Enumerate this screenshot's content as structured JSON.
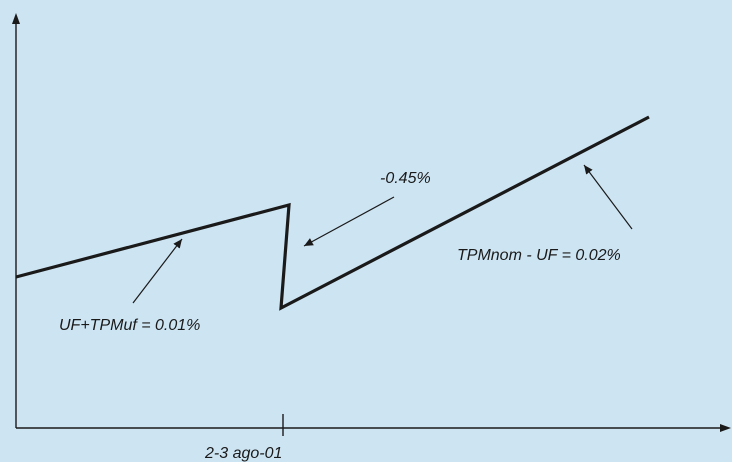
{
  "colors": {
    "background": "#cde4f3",
    "ink": "#1a1a1a"
  },
  "labels": {
    "left_slope": "UF+TPMuf = 0.01%",
    "jump": "-0.45%",
    "right_slope": "TPMnom - UF = 0.02%",
    "x_tick": "2-3 ago-01"
  }
}
